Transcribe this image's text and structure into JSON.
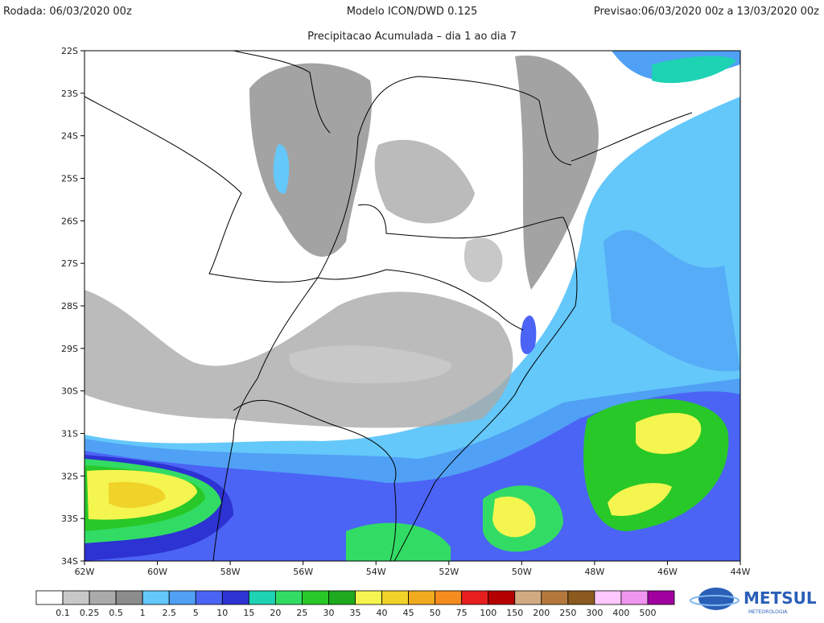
{
  "header": {
    "run": "Rodada: 06/03/2020 00z",
    "model": "Modelo ICON/DWD 0.125",
    "forecast": "Previsao:06/03/2020 00z a 13/03/2020 00z",
    "subtitle": "Precipitacao Acumulada – dia 1 ao dia 7"
  },
  "map": {
    "lat_labels": [
      "22S",
      "23S",
      "24S",
      "25S",
      "26S",
      "27S",
      "28S",
      "29S",
      "30S",
      "31S",
      "32S",
      "33S",
      "34S"
    ],
    "lon_labels": [
      "62W",
      "60W",
      "58W",
      "56W",
      "54W",
      "52W",
      "50W",
      "48W",
      "46W",
      "44W"
    ]
  },
  "legend": {
    "labels": [
      "0.1",
      "0.25",
      "0.5",
      "1",
      "2.5",
      "5",
      "10",
      "15",
      "20",
      "25",
      "30",
      "35",
      "40",
      "45",
      "50",
      "75",
      "100",
      "150",
      "200",
      "250",
      "300",
      "400",
      "500"
    ],
    "colors": [
      "#ffffff",
      "#c8c8c8",
      "#aaaaaa",
      "#8c8c8c",
      "#64c8fa",
      "#50a0f5",
      "#4b64f5",
      "#2d32d2",
      "#1ed2b4",
      "#32dc64",
      "#28c828",
      "#1eaa1e",
      "#f5f550",
      "#f0d228",
      "#f0aa1e",
      "#f58c1e",
      "#e61e1e",
      "#b40000",
      "#d2aa82",
      "#b4783c",
      "#8c5a1e",
      "#ffc8ff",
      "#f096f0",
      "#a000a0"
    ]
  },
  "logo": {
    "name": "METSUL",
    "tagline": "METEOROLOGIA"
  }
}
